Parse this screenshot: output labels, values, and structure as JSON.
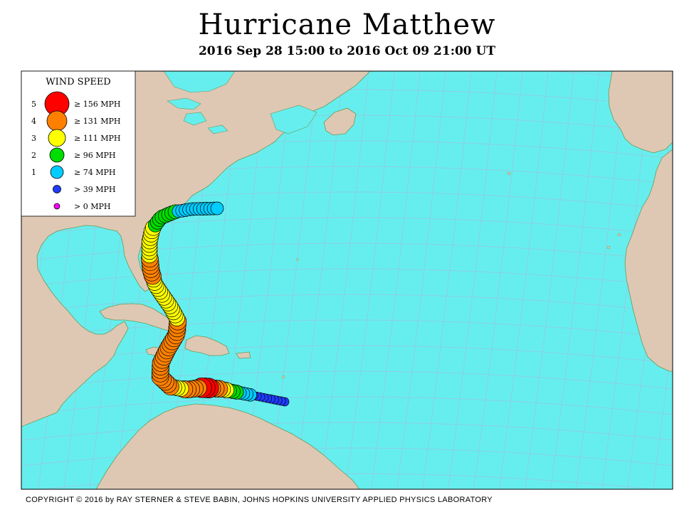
{
  "title": "Hurricane Matthew",
  "subtitle": "2016 Sep 28 15:00 to 2016 Oct 09 21:00 UT",
  "copyright": "COPYRIGHT © 2016 by RAY STERNER & STEVE BABIN, JOHNS HOPKINS UNIVERSITY APPLIED PHYSICS LABORATORY",
  "colors": {
    "ocean": "#66eeee",
    "land": "#dec8b4",
    "border": "#6a9a5a",
    "grid": "#8ccfe0",
    "cat5": "#ff0000",
    "cat4": "#ff8000",
    "cat3": "#ffff00",
    "cat2": "#00dd00",
    "cat1": "#00ccff",
    "ts": "#1e3cff",
    "td": "#ff00ff"
  },
  "legend": {
    "title": "WIND SPEED",
    "rows": [
      {
        "category": "5",
        "label": "≥ 156 MPH",
        "color": "cat5"
      },
      {
        "category": "4",
        "label": "≥ 131 MPH",
        "color": "cat4"
      },
      {
        "category": "3",
        "label": "≥ 111 MPH",
        "color": "cat3"
      },
      {
        "category": "2",
        "label": "≥ 96 MPH",
        "color": "cat2"
      },
      {
        "category": "1",
        "label": "≥ 74 MPH",
        "color": "cat1"
      },
      {
        "category": "",
        "label": "> 39 MPH",
        "color": "ts"
      },
      {
        "category": "",
        "label": "> 0 MPH",
        "color": "td"
      }
    ]
  },
  "track_segments": [
    {
      "category": "ts",
      "count": 10
    },
    {
      "category": "cat1",
      "count": 4
    },
    {
      "category": "cat2",
      "count": 3
    },
    {
      "category": "cat3",
      "count": 2
    },
    {
      "category": "cat4",
      "count": 3
    },
    {
      "category": "cat5",
      "count": 3
    },
    {
      "category": "cat4",
      "count": 5
    },
    {
      "category": "cat3",
      "count": 3
    },
    {
      "category": "cat4",
      "count": 22
    },
    {
      "category": "cat3",
      "count": 14
    },
    {
      "category": "cat4",
      "count": 6
    },
    {
      "category": "cat3",
      "count": 9
    },
    {
      "category": "cat2",
      "count": 8
    },
    {
      "category": "cat1",
      "count": 12
    }
  ]
}
